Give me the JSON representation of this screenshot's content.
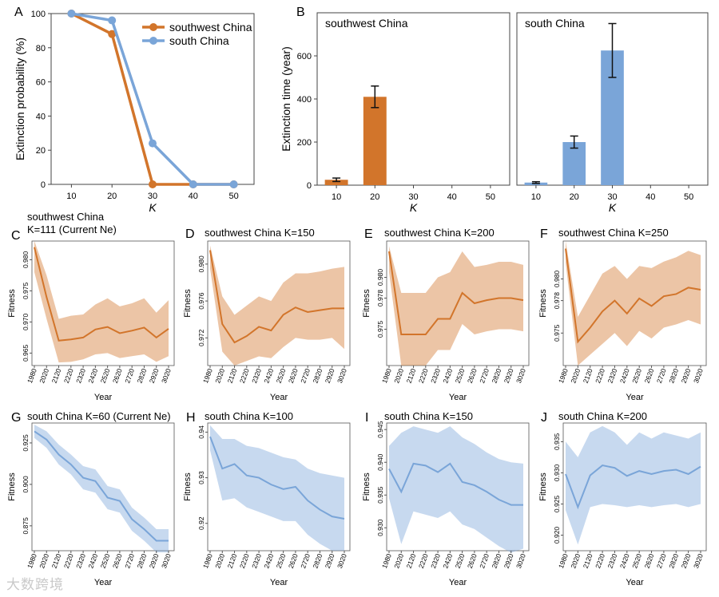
{
  "panels_text": {
    "A": "A",
    "B": "B",
    "C": "C",
    "D": "D",
    "E": "E",
    "F": "F",
    "G": "G",
    "H": "H",
    "I": "I",
    "J": "J"
  },
  "watermark": "大数跨境",
  "chart_data": [
    {
      "id": "A",
      "type": "line",
      "xlabel": "K",
      "ylabel": "Extinction probability (%)",
      "x": [
        10,
        20,
        30,
        40,
        50
      ],
      "xlim": [
        5,
        55
      ],
      "ylim": [
        0,
        100
      ],
      "yticks": [
        0,
        20,
        40,
        60,
        80,
        100
      ],
      "series": [
        {
          "name": "southwest China",
          "color": "#d2752b",
          "values": [
            100,
            88,
            0,
            0,
            0
          ]
        },
        {
          "name": "south China",
          "color": "#7aa5d8",
          "values": [
            100,
            96,
            24,
            0,
            0
          ]
        }
      ],
      "legend": "top-right"
    },
    {
      "id": "B1",
      "type": "bar",
      "title": "southwest China",
      "xlabel": "K",
      "ylabel": "Extinction time (year)",
      "categories": [
        "10",
        "20",
        "30",
        "40",
        "50"
      ],
      "values": [
        25,
        410,
        null,
        null,
        null
      ],
      "errors": [
        8,
        50,
        null,
        null,
        null
      ],
      "ylim": [
        0,
        800
      ],
      "yticks": [
        0,
        200,
        400,
        600,
        800
      ],
      "color": "#d2752b"
    },
    {
      "id": "B2",
      "type": "bar",
      "title": "south China",
      "xlabel": "K",
      "ylabel": "",
      "categories": [
        "10",
        "20",
        "30",
        "40",
        "50"
      ],
      "values": [
        12,
        200,
        625,
        null,
        null
      ],
      "errors": [
        4,
        28,
        125,
        null,
        null
      ],
      "ylim": [
        0,
        800
      ],
      "color": "#7aa5d8"
    },
    {
      "id": "C",
      "type": "area",
      "title": "southwest China\nK=111 (Current Ne)",
      "xlabel": "Year",
      "ylabel": "Fitness",
      "color": "#d2752b",
      "x": [
        1980,
        2020,
        2120,
        2220,
        2320,
        2420,
        2520,
        2620,
        2720,
        2820,
        2920,
        3020
      ],
      "xticks": [
        "1980",
        "2020",
        "2120",
        "2220",
        "2320",
        "2420",
        "2520",
        "2620",
        "2720",
        "2820",
        "2920",
        "3020"
      ],
      "ylim": [
        0.963,
        0.983
      ],
      "yticks": [
        "0.965",
        "0.970",
        "0.975",
        "0.980"
      ],
      "ytick_values": [
        0.965,
        0.97,
        0.975,
        0.98
      ],
      "mean": [
        0.982,
        0.974,
        0.967,
        0.9672,
        0.9675,
        0.9688,
        0.9692,
        0.9682,
        0.9686,
        0.9691,
        0.9675,
        0.9689
      ],
      "upper": [
        0.983,
        0.9775,
        0.9705,
        0.971,
        0.9712,
        0.9728,
        0.9738,
        0.9725,
        0.973,
        0.9738,
        0.9715,
        0.9735
      ],
      "lower": [
        0.978,
        0.9705,
        0.9635,
        0.9636,
        0.964,
        0.9648,
        0.965,
        0.9642,
        0.9645,
        0.9648,
        0.9636,
        0.9645
      ]
    },
    {
      "id": "D",
      "type": "area",
      "title": "southwest China K=150",
      "xlabel": "Year",
      "ylabel": "Fitness",
      "color": "#d2752b",
      "x": [
        1980,
        2020,
        2120,
        2220,
        2320,
        2420,
        2520,
        2620,
        2720,
        2820,
        2920,
        3020
      ],
      "xticks": [
        "1980",
        "2020",
        "2120",
        "2220",
        "2320",
        "2420",
        "2520",
        "2620",
        "2720",
        "2820",
        "2920",
        "3020"
      ],
      "ylim": [
        0.969,
        0.9825
      ],
      "yticks": [
        "0.972",
        "0.976",
        "0.980"
      ],
      "ytick_values": [
        0.972,
        0.976,
        0.98
      ],
      "mean": [
        0.9815,
        0.9735,
        0.9715,
        0.9722,
        0.9732,
        0.9728,
        0.9745,
        0.9753,
        0.9748,
        0.975,
        0.9752,
        0.9752
      ],
      "upper": [
        0.982,
        0.9765,
        0.9745,
        0.9755,
        0.9765,
        0.976,
        0.978,
        0.979,
        0.979,
        0.9792,
        0.9795,
        0.9797
      ],
      "lower": [
        0.9795,
        0.9705,
        0.969,
        0.9695,
        0.97,
        0.9698,
        0.971,
        0.972,
        0.9718,
        0.9718,
        0.972,
        0.9708
      ]
    },
    {
      "id": "E",
      "type": "area",
      "title": "southwest China K=200",
      "xlabel": "Year",
      "ylabel": "Fitness",
      "color": "#d2752b",
      "x": [
        1980,
        2020,
        2120,
        2220,
        2320,
        2420,
        2520,
        2620,
        2720,
        2820,
        2920,
        3020
      ],
      "xticks": [
        "1980",
        "2020",
        "2120",
        "2220",
        "2320",
        "2420",
        "2520",
        "2620",
        "2720",
        "2820",
        "2920",
        "3020"
      ],
      "ylim": [
        0.9715,
        0.9835
      ],
      "yticks": [
        "0.975",
        "0.978",
        "0.980"
      ],
      "ytick_values": [
        0.975,
        0.978,
        0.98
      ],
      "mean": [
        0.9825,
        0.9745,
        0.9745,
        0.9745,
        0.976,
        0.976,
        0.9785,
        0.9775,
        0.9778,
        0.978,
        0.978,
        0.9778
      ],
      "upper": [
        0.983,
        0.9785,
        0.9785,
        0.9785,
        0.98,
        0.9805,
        0.9825,
        0.981,
        0.9812,
        0.9815,
        0.9815,
        0.9812
      ],
      "lower": [
        0.9805,
        0.9715,
        0.9715,
        0.9715,
        0.973,
        0.973,
        0.9755,
        0.9745,
        0.9748,
        0.975,
        0.975,
        0.9748
      ]
    },
    {
      "id": "F",
      "type": "area",
      "title": "southwest China K=250",
      "xlabel": "Year",
      "ylabel": "Fitness",
      "color": "#d2752b",
      "x": [
        1980,
        2020,
        2120,
        2220,
        2320,
        2420,
        2520,
        2620,
        2720,
        2820,
        2920,
        3020
      ],
      "xticks": [
        "1980",
        "2020",
        "2120",
        "2220",
        "2320",
        "2420",
        "2520",
        "2620",
        "2720",
        "2820",
        "2920",
        "3020"
      ],
      "ylim": [
        0.972,
        0.9835
      ],
      "yticks": [
        "0.975",
        "0.978",
        "0.980"
      ],
      "ytick_values": [
        0.975,
        0.978,
        0.98
      ],
      "mean": [
        0.9828,
        0.9742,
        0.9755,
        0.977,
        0.978,
        0.9768,
        0.9782,
        0.9775,
        0.9784,
        0.9786,
        0.9792,
        0.979
      ],
      "upper": [
        0.9835,
        0.9765,
        0.9785,
        0.9805,
        0.9812,
        0.98,
        0.9812,
        0.981,
        0.9816,
        0.982,
        0.9826,
        0.9822
      ],
      "lower": [
        0.9815,
        0.972,
        0.973,
        0.974,
        0.975,
        0.9738,
        0.9752,
        0.9745,
        0.9755,
        0.9758,
        0.9762,
        0.9758
      ]
    },
    {
      "id": "G",
      "type": "area",
      "title": "south China K=60 (Current Ne)",
      "xlabel": "Year",
      "ylabel": "Fitness",
      "color": "#7aa5d8",
      "x": [
        1980,
        2020,
        2120,
        2220,
        2320,
        2420,
        2520,
        2620,
        2720,
        2820,
        2920,
        3020
      ],
      "xticks": [
        "1980",
        "2020",
        "2120",
        "2220",
        "2320",
        "2420",
        "2520",
        "2620",
        "2720",
        "2820",
        "2920",
        "3020"
      ],
      "ylim": [
        0.86,
        0.937
      ],
      "yticks": [
        "0.875",
        "0.900",
        "0.925"
      ],
      "ytick_values": [
        0.875,
        0.9,
        0.925
      ],
      "mean": [
        0.932,
        0.927,
        0.918,
        0.912,
        0.904,
        0.902,
        0.892,
        0.89,
        0.879,
        0.873,
        0.866,
        0.866
      ],
      "upper": [
        0.936,
        0.932,
        0.924,
        0.918,
        0.911,
        0.909,
        0.899,
        0.897,
        0.886,
        0.88,
        0.873,
        0.873
      ],
      "lower": [
        0.928,
        0.922,
        0.912,
        0.906,
        0.897,
        0.895,
        0.885,
        0.883,
        0.872,
        0.866,
        0.859,
        0.859
      ]
    },
    {
      "id": "H",
      "type": "area",
      "title": "south China K=100",
      "xlabel": "Year",
      "ylabel": "Fitness",
      "color": "#7aa5d8",
      "x": [
        1980,
        2020,
        2120,
        2220,
        2320,
        2420,
        2520,
        2620,
        2720,
        2820,
        2920,
        3020
      ],
      "xticks": [
        "1980",
        "2020",
        "2120",
        "2220",
        "2320",
        "2420",
        "2520",
        "2620",
        "2720",
        "2820",
        "2920",
        "3020"
      ],
      "ylim": [
        0.914,
        0.942
      ],
      "yticks": [
        "0.92",
        "0.93",
        "0.94"
      ],
      "ytick_values": [
        0.92,
        0.93,
        0.94
      ],
      "mean": [
        0.939,
        0.932,
        0.933,
        0.9305,
        0.93,
        0.9285,
        0.9275,
        0.928,
        0.925,
        0.923,
        0.9215,
        0.921
      ],
      "upper": [
        0.9415,
        0.9385,
        0.9385,
        0.937,
        0.9365,
        0.9355,
        0.9345,
        0.934,
        0.932,
        0.931,
        0.9305,
        0.93
      ],
      "lower": [
        0.936,
        0.925,
        0.9255,
        0.9235,
        0.9225,
        0.9215,
        0.9205,
        0.9205,
        0.9175,
        0.9155,
        0.914,
        0.914
      ]
    },
    {
      "id": "I",
      "type": "area",
      "title": "south China K=150",
      "xlabel": "Year",
      "ylabel": "Fitness",
      "color": "#7aa5d8",
      "x": [
        1980,
        2020,
        2120,
        2220,
        2320,
        2420,
        2520,
        2620,
        2720,
        2820,
        2920,
        3020
      ],
      "xticks": [
        "1980",
        "2020",
        "2120",
        "2220",
        "2320",
        "2420",
        "2520",
        "2620",
        "2720",
        "2820",
        "2920",
        "3020"
      ],
      "ylim": [
        0.9265,
        0.946
      ],
      "yticks": [
        "0.930",
        "0.935",
        "0.940",
        "0.945"
      ],
      "ytick_values": [
        0.93,
        0.935,
        0.94,
        0.945
      ],
      "mean": [
        0.939,
        0.9355,
        0.9398,
        0.9395,
        0.9385,
        0.9398,
        0.937,
        0.9365,
        0.9355,
        0.9343,
        0.9335,
        0.9335
      ],
      "upper": [
        0.9425,
        0.9445,
        0.9455,
        0.945,
        0.9445,
        0.9455,
        0.9438,
        0.9428,
        0.9415,
        0.9405,
        0.94,
        0.9398
      ],
      "lower": [
        0.9345,
        0.9275,
        0.9325,
        0.932,
        0.9315,
        0.9325,
        0.9305,
        0.9298,
        0.9285,
        0.9272,
        0.9262,
        0.9268
      ]
    },
    {
      "id": "J",
      "type": "area",
      "title": "south China K=200",
      "xlabel": "Year",
      "ylabel": "Fitness",
      "color": "#7aa5d8",
      "x": [
        1980,
        2020,
        2120,
        2220,
        2320,
        2420,
        2520,
        2620,
        2720,
        2820,
        2920,
        3020
      ],
      "xticks": [
        "1980",
        "2020",
        "2120",
        "2220",
        "2320",
        "2420",
        "2520",
        "2620",
        "2720",
        "2820",
        "2920",
        "3020"
      ],
      "ylim": [
        0.9175,
        0.938
      ],
      "yticks": [
        "0.920",
        "0.925",
        "0.930",
        "0.935"
      ],
      "ytick_values": [
        0.92,
        0.925,
        0.93,
        0.935
      ],
      "mean": [
        0.9298,
        0.9245,
        0.9296,
        0.9312,
        0.9308,
        0.9295,
        0.9303,
        0.9298,
        0.9303,
        0.9305,
        0.9298,
        0.931
      ],
      "upper": [
        0.935,
        0.9325,
        0.9365,
        0.9375,
        0.9365,
        0.9345,
        0.9365,
        0.9355,
        0.9365,
        0.936,
        0.9355,
        0.9365
      ],
      "lower": [
        0.924,
        0.9185,
        0.9245,
        0.925,
        0.9248,
        0.9245,
        0.9248,
        0.9245,
        0.9248,
        0.925,
        0.9245,
        0.925
      ]
    }
  ]
}
